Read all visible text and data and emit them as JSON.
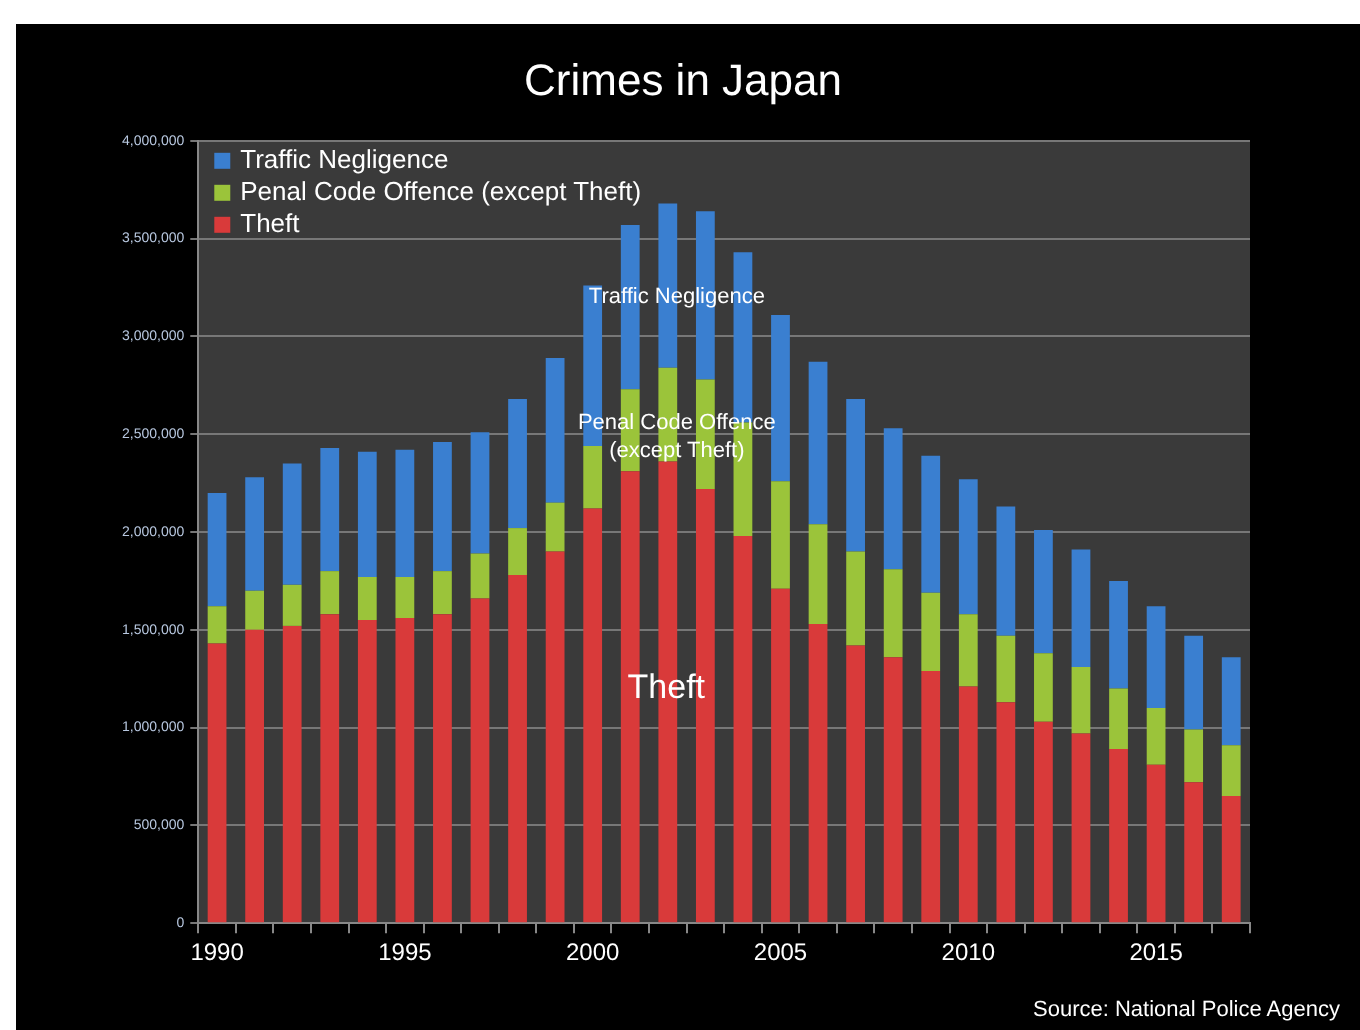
{
  "chart_data": {
    "type": "bar",
    "stacked": true,
    "title": "Crimes in Japan",
    "categories": [
      "1990",
      null,
      null,
      null,
      null,
      "1995",
      null,
      null,
      null,
      null,
      "2000",
      null,
      null,
      null,
      null,
      "2005",
      null,
      null,
      null,
      null,
      "2010",
      null,
      null,
      null,
      null,
      "2015",
      null,
      null
    ],
    "series": [
      {
        "name": "Theft",
        "color": "#d93a3a",
        "values": [
          1430000,
          1500000,
          1520000,
          1580000,
          1550000,
          1560000,
          1580000,
          1660000,
          1780000,
          1900000,
          2120000,
          2310000,
          2360000,
          2220000,
          1980000,
          1710000,
          1530000,
          1420000,
          1360000,
          1290000,
          1210000,
          1130000,
          1030000,
          970000,
          890000,
          810000,
          720000,
          650000
        ]
      },
      {
        "name": "Penal Code Offence (except Theft)",
        "color": "#9bc43a",
        "values": [
          190000,
          200000,
          210000,
          220000,
          220000,
          210000,
          220000,
          230000,
          240000,
          250000,
          320000,
          420000,
          480000,
          560000,
          580000,
          550000,
          510000,
          480000,
          450000,
          400000,
          370000,
          340000,
          350000,
          340000,
          310000,
          290000,
          270000,
          260000
        ]
      },
      {
        "name": "Traffic Negligence",
        "color": "#3a7fd0",
        "values": [
          580000,
          580000,
          620000,
          630000,
          640000,
          650000,
          660000,
          620000,
          660000,
          740000,
          820000,
          840000,
          840000,
          860000,
          870000,
          850000,
          830000,
          780000,
          720000,
          700000,
          690000,
          660000,
          630000,
          600000,
          550000,
          520000,
          480000,
          450000
        ]
      }
    ],
    "ylim": [
      0,
      4000000
    ],
    "yticks": [
      {
        "value": 0,
        "label": "0"
      },
      {
        "value": 500000,
        "label": "500,000"
      },
      {
        "value": 1000000,
        "label": "1,000,000"
      },
      {
        "value": 1500000,
        "label": "1,500,000"
      },
      {
        "value": 2000000,
        "label": "2,000,000"
      },
      {
        "value": 2500000,
        "label": "2,500,000"
      },
      {
        "value": 3000000,
        "label": "3,000,000"
      },
      {
        "value": 3500000,
        "label": "3,500,000"
      },
      {
        "value": 4000000,
        "label": "4,000,000"
      }
    ],
    "grid": "y",
    "legend": "top left",
    "annotations": [
      "Traffic Negligence",
      "Penal Code Offence (except Theft)",
      "Theft",
      "Source: National Police Agency"
    ]
  }
}
